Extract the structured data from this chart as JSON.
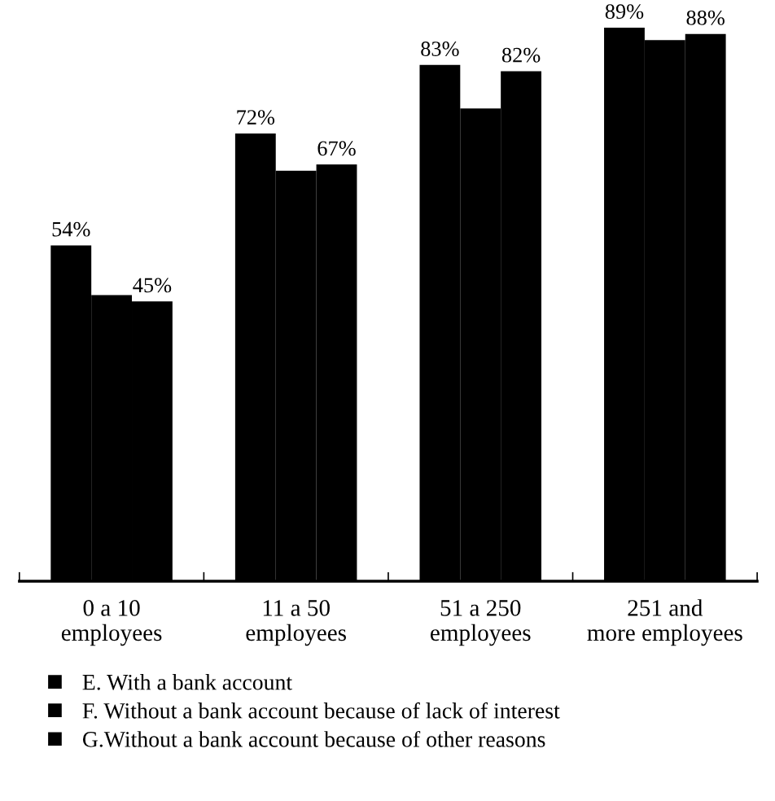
{
  "chart_data": {
    "type": "bar",
    "categories": [
      "0 a 10\nemployees",
      "11 a 50\nemployees",
      "51 a 250\nemployees",
      "251 and\nmore employees"
    ],
    "series": [
      {
        "name": "E. With a bank account",
        "color": "#000000",
        "values": [
          54,
          72,
          83,
          89
        ],
        "value_labels": [
          "54%",
          "72%",
          "83%",
          "89%"
        ]
      },
      {
        "name": "F. Without a bank account because of lack of interest",
        "color": "#000000",
        "values": [
          46,
          66,
          76,
          87
        ],
        "value_labels": [
          null,
          null,
          null,
          null
        ]
      },
      {
        "name": "G.Without a bank account because of other reasons",
        "color": "#000000",
        "values": [
          45,
          67,
          82,
          88
        ],
        "value_labels": [
          "45%",
          "67%",
          "82%",
          "88%"
        ]
      }
    ],
    "tick_labels": "x",
    "grid": false,
    "legend": "bottom"
  }
}
